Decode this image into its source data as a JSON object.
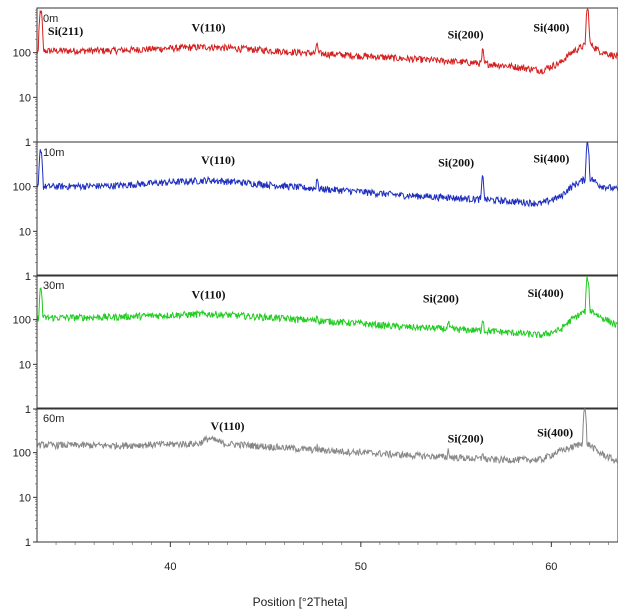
{
  "chart_data": {
    "type": "line",
    "xlabel": "Position [°2Theta]",
    "x_ticks": [
      40,
      50,
      60
    ],
    "xlim": [
      33,
      63.5
    ],
    "y_scale": "log",
    "y_ticks": [
      {
        "value": 1,
        "label": "1"
      },
      {
        "value": 10,
        "label": "10"
      },
      {
        "value": 100,
        "label": "100"
      }
    ],
    "ylim": [
      1,
      1000
    ],
    "grid": false,
    "panels": [
      {
        "sample": "0m",
        "color": "#d42020",
        "baseline": [
          [
            33,
            110
          ],
          [
            37,
            112
          ],
          [
            42,
            135
          ],
          [
            47,
            100
          ],
          [
            52,
            75
          ],
          [
            57,
            55
          ],
          [
            59.5,
            40
          ],
          [
            60.5,
            60
          ],
          [
            61.2,
            110
          ],
          [
            62,
            160
          ],
          [
            62.5,
            110
          ],
          [
            63.5,
            80
          ]
        ],
        "peaks": [
          [
            33.2,
            900
          ],
          [
            47.7,
            170
          ],
          [
            54.6,
            70
          ],
          [
            56.4,
            110
          ],
          [
            61.9,
            1000
          ]
        ],
        "labels": [
          {
            "text": "Si(211)",
            "x": 34.5,
            "y": 250
          },
          {
            "text": "V(110)",
            "x": 42,
            "y": 300
          },
          {
            "text": "Si(200)",
            "x": 55.5,
            "y": 210
          },
          {
            "text": "Si(400)",
            "x": 60,
            "y": 300
          }
        ]
      },
      {
        "sample": "10m",
        "color": "#1f2fbf",
        "baseline": [
          [
            33,
            100
          ],
          [
            37,
            105
          ],
          [
            42,
            140
          ],
          [
            47,
            95
          ],
          [
            52,
            65
          ],
          [
            57,
            50
          ],
          [
            59.5,
            42
          ],
          [
            60.5,
            60
          ],
          [
            61.2,
            110
          ],
          [
            62,
            160
          ],
          [
            62.5,
            110
          ],
          [
            63.5,
            85
          ]
        ],
        "peaks": [
          [
            33.2,
            700
          ],
          [
            47.7,
            160
          ],
          [
            54.6,
            75
          ],
          [
            56.4,
            160
          ],
          [
            61.9,
            1000
          ]
        ],
        "labels": [
          {
            "text": "V(110)",
            "x": 42.5,
            "y": 320
          },
          {
            "text": "Si(200)",
            "x": 55,
            "y": 280
          },
          {
            "text": "Si(400)",
            "x": 60,
            "y": 350
          }
        ]
      },
      {
        "sample": "30m",
        "color": "#22cc22",
        "baseline": [
          [
            33,
            110
          ],
          [
            37,
            115
          ],
          [
            42,
            135
          ],
          [
            47,
            100
          ],
          [
            52,
            70
          ],
          [
            57,
            55
          ],
          [
            59.5,
            45
          ],
          [
            60.5,
            60
          ],
          [
            61.2,
            110
          ],
          [
            62,
            170
          ],
          [
            62.5,
            120
          ],
          [
            63.5,
            70
          ]
        ],
        "peaks": [
          [
            33.2,
            500
          ],
          [
            47.7,
            130
          ],
          [
            54.6,
            90
          ],
          [
            56.4,
            110
          ],
          [
            61.9,
            900
          ]
        ],
        "labels": [
          {
            "text": "V(110)",
            "x": 42,
            "y": 300
          },
          {
            "text": "Si(200)",
            "x": 54.2,
            "y": 240
          },
          {
            "text": "Si(400)",
            "x": 59.7,
            "y": 320
          }
        ]
      },
      {
        "sample": "60m",
        "color": "#888888",
        "baseline": [
          [
            33,
            150
          ],
          [
            37,
            145
          ],
          [
            41.5,
            160
          ],
          [
            42,
            210
          ],
          [
            42.8,
            160
          ],
          [
            47,
            120
          ],
          [
            52,
            90
          ],
          [
            57,
            70
          ],
          [
            59.5,
            70
          ],
          [
            61,
            130
          ],
          [
            61.8,
            170
          ],
          [
            62.5,
            100
          ],
          [
            63.5,
            60
          ]
        ],
        "peaks": [
          [
            47.7,
            140
          ],
          [
            54.6,
            120
          ],
          [
            56.4,
            110
          ],
          [
            61.75,
            1000
          ]
        ],
        "labels": [
          {
            "text": "V(110)",
            "x": 43,
            "y": 320
          },
          {
            "text": "Si(200)",
            "x": 55.5,
            "y": 170
          },
          {
            "text": "Si(400)",
            "x": 60.2,
            "y": 230
          }
        ]
      }
    ]
  }
}
